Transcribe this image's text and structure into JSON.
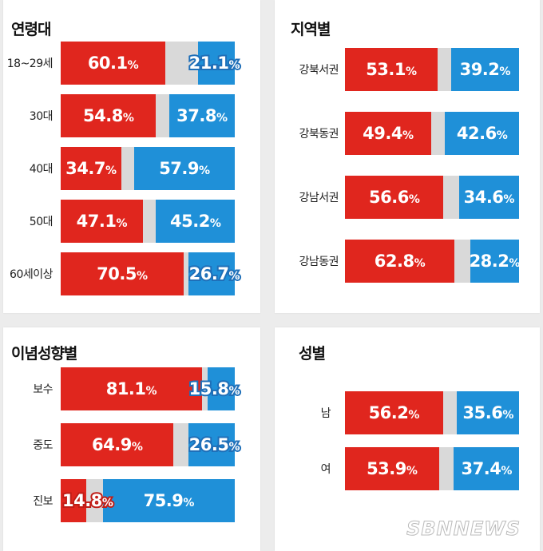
{
  "chart_data": [
    {
      "type": "bar",
      "orientation": "horizontal-stacked",
      "title": "연령대",
      "categories": [
        "18~29세",
        "30대",
        "40대",
        "50대",
        "60세이상"
      ],
      "series": [
        {
          "values": [
            60.1,
            54.8,
            34.7,
            47.1,
            70.5
          ]
        },
        {
          "values": [
            21.1,
            37.8,
            57.9,
            45.2,
            26.7
          ]
        }
      ],
      "xlim": [
        0,
        100
      ]
    },
    {
      "type": "bar",
      "orientation": "horizontal-stacked",
      "title": "지역별",
      "categories": [
        "강북서권",
        "강북동권",
        "강남서권",
        "강남동권"
      ],
      "series": [
        {
          "values": [
            53.1,
            49.4,
            56.6,
            62.8
          ]
        },
        {
          "values": [
            39.2,
            42.6,
            34.6,
            28.2
          ]
        }
      ],
      "xlim": [
        0,
        100
      ]
    },
    {
      "type": "bar",
      "orientation": "horizontal-stacked",
      "title": "이념성향별",
      "categories": [
        "보수",
        "중도",
        "진보"
      ],
      "series": [
        {
          "values": [
            81.1,
            64.9,
            14.8
          ]
        },
        {
          "values": [
            15.8,
            26.5,
            75.9
          ]
        }
      ],
      "xlim": [
        0,
        100
      ]
    },
    {
      "type": "bar",
      "orientation": "horizontal-stacked",
      "title": "성별",
      "categories": [
        "남",
        "여"
      ],
      "series": [
        {
          "values": [
            56.2,
            53.9
          ]
        },
        {
          "values": [
            35.6,
            37.4
          ]
        }
      ],
      "xlim": [
        0,
        100
      ]
    }
  ],
  "colors": {
    "series1": "#e0261e",
    "series2": "#1f90d8",
    "remainder": "#d9d9d9"
  },
  "unit": "%",
  "watermark": "SBNNEWS"
}
